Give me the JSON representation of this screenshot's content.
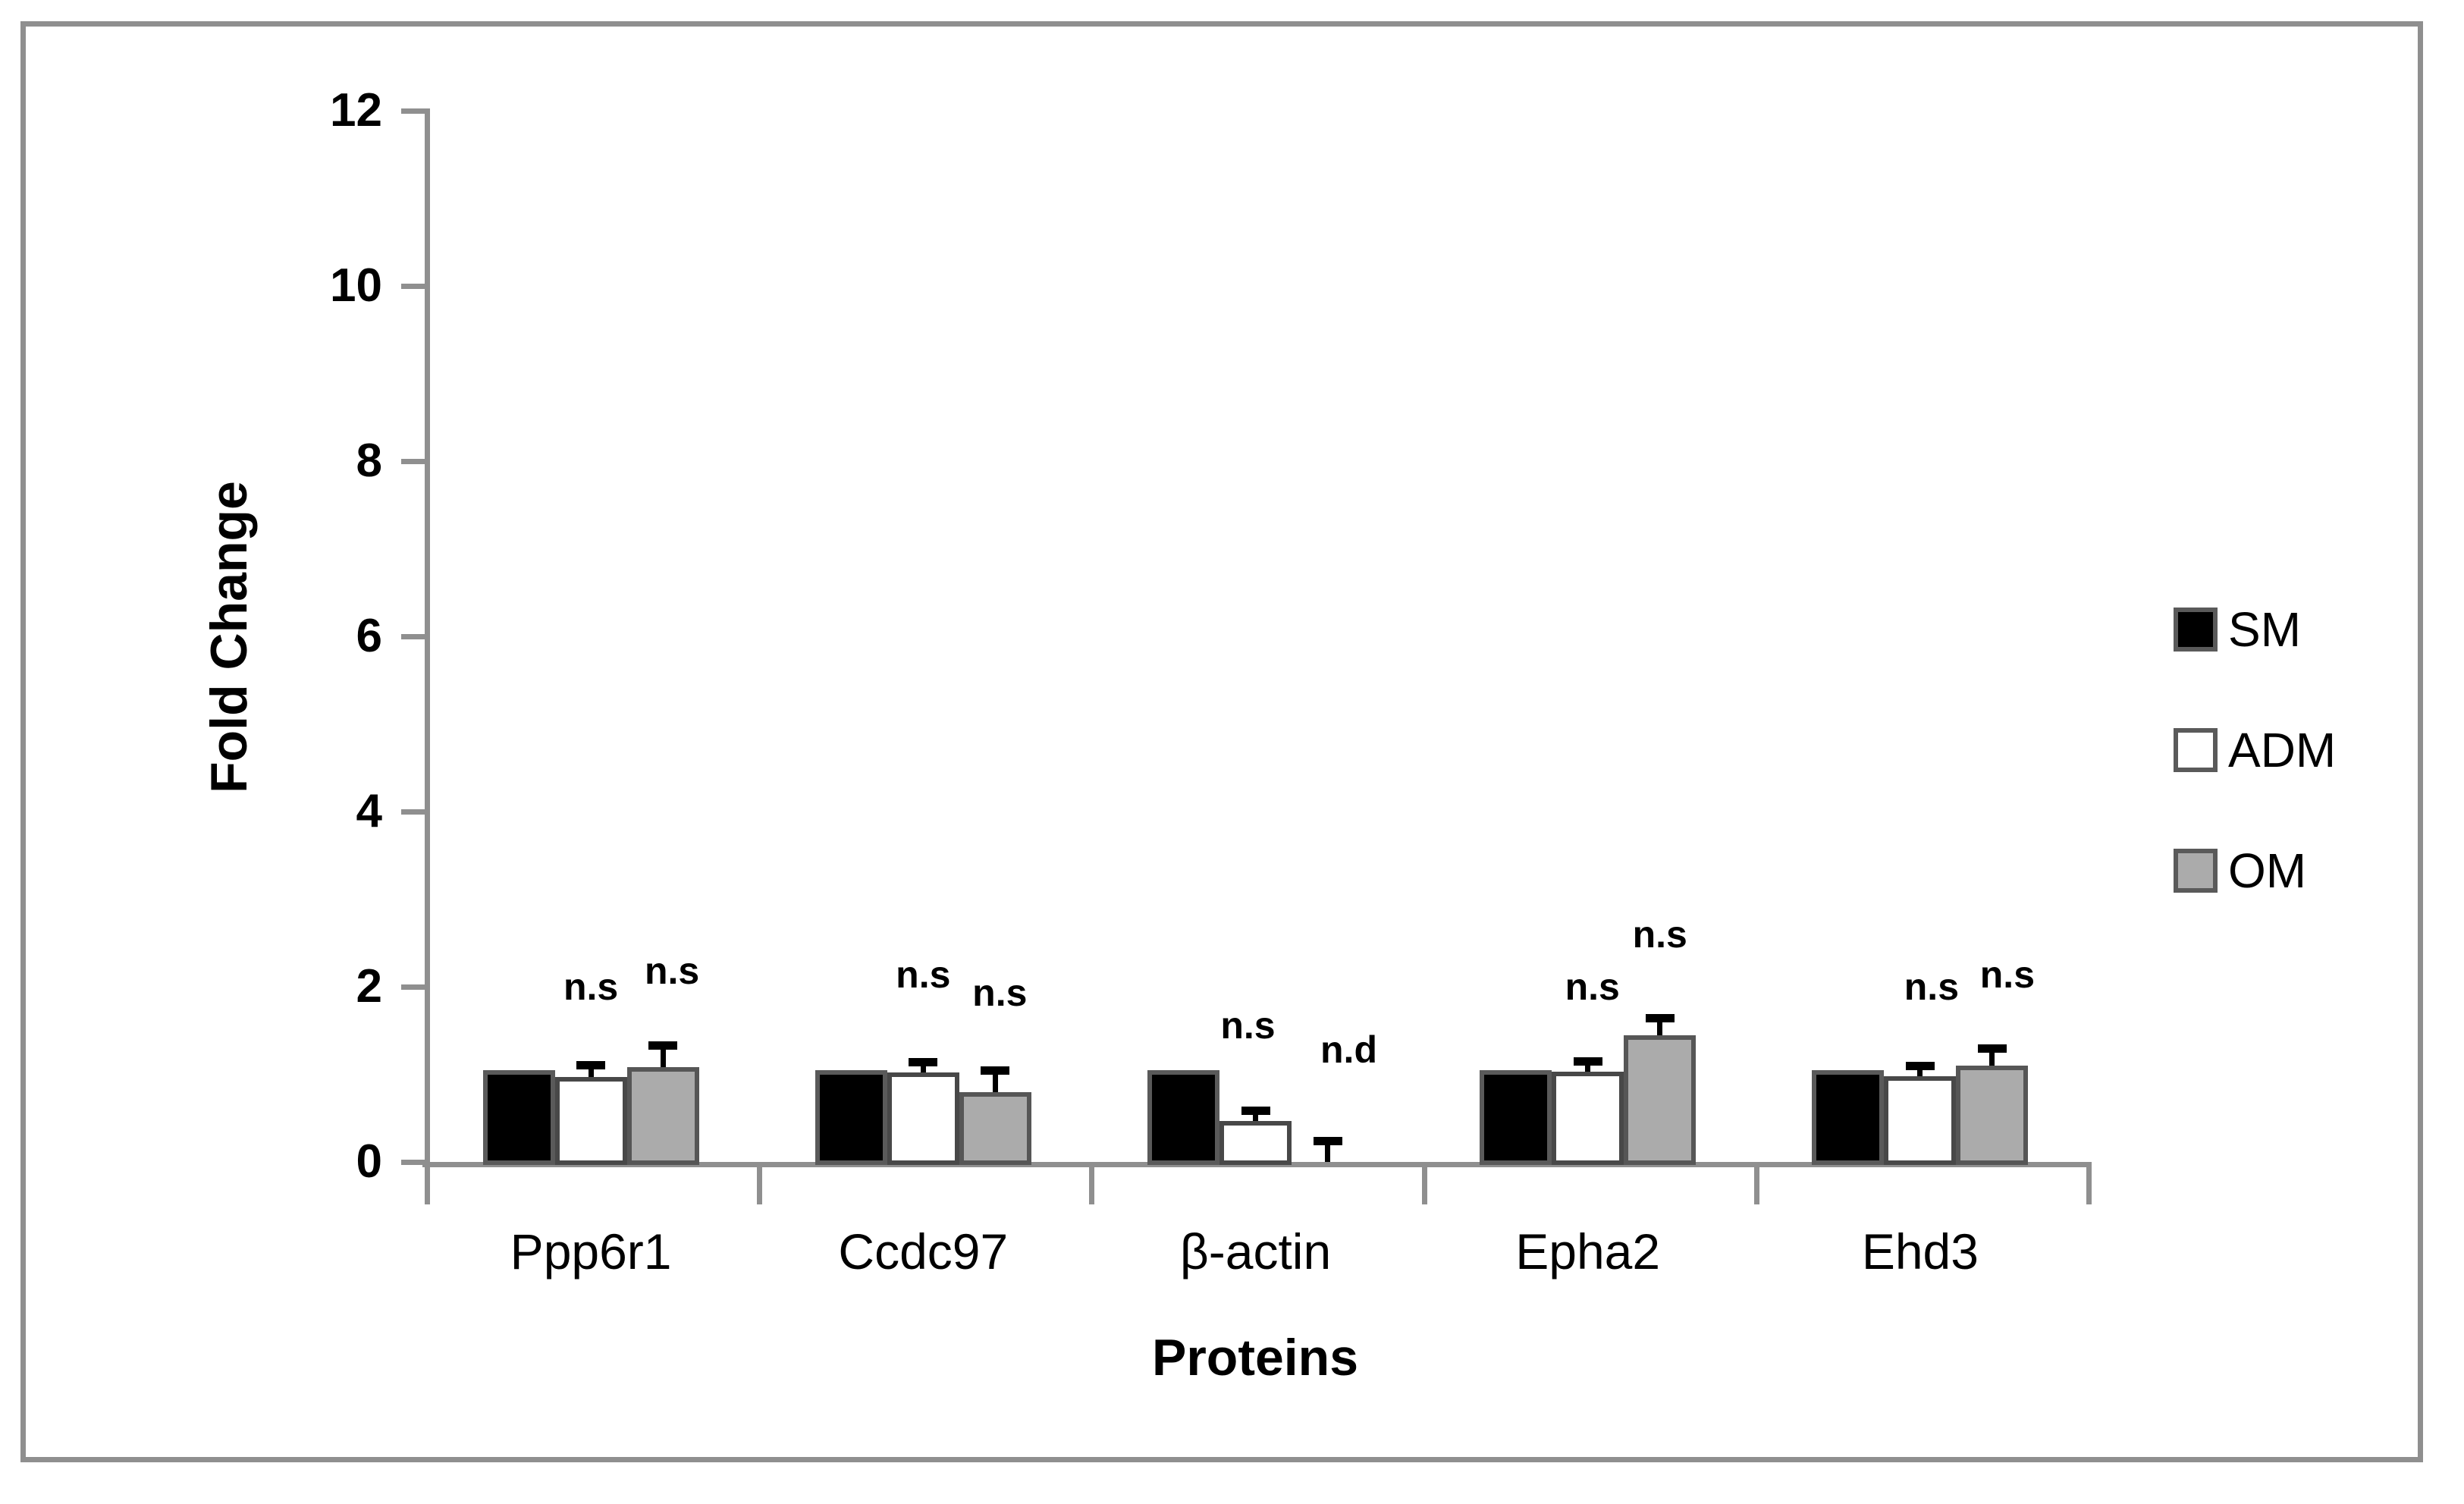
{
  "figure": {
    "background": "#ffffff",
    "frame_color": "#8f8f8f",
    "axis_color": "#8f8f8f",
    "error_bar_color": "#000000",
    "text_color": "#000000"
  },
  "legend": {
    "position": "right-middle",
    "items": [
      {
        "label": "SM",
        "swatch": "legend-swatch-sm",
        "fill": "#000000",
        "border": "#5a5a5a"
      },
      {
        "label": "ADM",
        "swatch": "legend-swatch-adm",
        "fill": "#ffffff",
        "border": "#5a5a5a"
      },
      {
        "label": "OM",
        "swatch": "legend-swatch-om",
        "fill": "#ababab",
        "border": "#5a5a5a"
      }
    ]
  },
  "chart_data": {
    "type": "bar",
    "title": "",
    "xlabel": "Proteins",
    "ylabel": "Fold Change",
    "ylim": [
      0,
      12
    ],
    "yticks": [
      0,
      2,
      4,
      6,
      8,
      10,
      12
    ],
    "grid": false,
    "legend_position": "right",
    "categories": [
      "Ppp6r1",
      "Ccdc97",
      "β-actin",
      "Epha2",
      "Ehd3"
    ],
    "series": [
      {
        "name": "SM",
        "fill": "#000000",
        "border": "#5a5a5a",
        "values": [
          1.05,
          1.05,
          1.05,
          1.05,
          1.05
        ],
        "errors": [
          0,
          0,
          0,
          0,
          0
        ]
      },
      {
        "name": "ADM",
        "fill": "#ffffff",
        "border": "#484848",
        "values": [
          0.97,
          1.02,
          0.47,
          1.03,
          0.98
        ],
        "errors": [
          0.15,
          0.13,
          0.13,
          0.13,
          0.13
        ]
      },
      {
        "name": "OM",
        "fill": "#ababab",
        "border": "#565656",
        "values": [
          1.08,
          0.8,
          0,
          1.45,
          1.1
        ],
        "errors": [
          0.26,
          0.26,
          0.25,
          0.2,
          0.21
        ]
      }
    ],
    "annotations": [
      {
        "category": "Ppp6r1",
        "series": "ADM",
        "text": "n.s",
        "y": 2.0,
        "dx": 0
      },
      {
        "category": "Ppp6r1",
        "series": "OM",
        "text": "n.s",
        "y": 2.18,
        "dx": 12
      },
      {
        "category": "Ccdc97",
        "series": "ADM",
        "text": "n.s",
        "y": 2.14,
        "dx": 0
      },
      {
        "category": "Ccdc97",
        "series": "OM",
        "text": "n.s",
        "y": 1.93,
        "dx": 6
      },
      {
        "category": "β-actin",
        "series": "ADM",
        "text": "n.s",
        "y": 1.56,
        "dx": -10
      },
      {
        "category": "β-actin",
        "series": "OM",
        "text": "n.d",
        "y": 1.28,
        "dx": 28
      },
      {
        "category": "Epha2",
        "series": "ADM",
        "text": "n.s",
        "y": 2.0,
        "dx": 6
      },
      {
        "category": "Epha2",
        "series": "OM",
        "text": "n.s",
        "y": 2.6,
        "dx": 0
      },
      {
        "category": "Ehd3",
        "series": "ADM",
        "text": "n.s",
        "y": 2.0,
        "dx": 15
      },
      {
        "category": "Ehd3",
        "series": "OM",
        "text": "n.s",
        "y": 2.14,
        "dx": 20
      }
    ]
  }
}
